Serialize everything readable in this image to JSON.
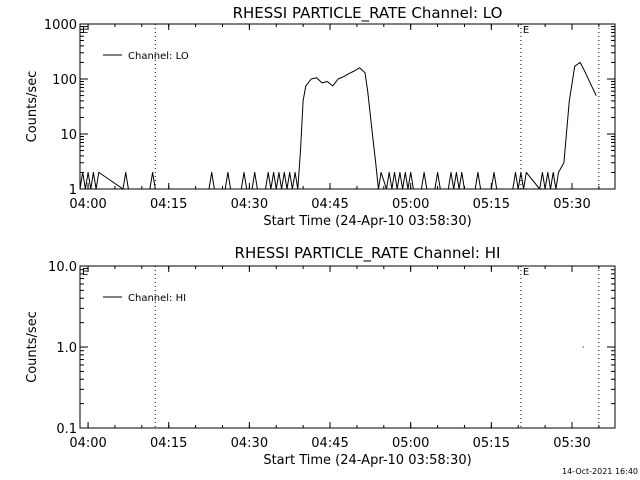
{
  "footer": "14-Oct-2021 16:40",
  "chart_data": [
    {
      "type": "line",
      "title": "RHESSI PARTICLE_RATE Channel: LO",
      "xlabel": "Start Time (24-Apr-10 03:58:30)",
      "ylabel": "Counts/sec",
      "yscale": "log",
      "ylim": [
        1,
        1000
      ],
      "xlim": [
        "03:58:30",
        "05:38:00"
      ],
      "xticks": [
        "04:00",
        "04:15",
        "04:30",
        "04:45",
        "05:00",
        "05:15",
        "05:30"
      ],
      "yticks": [
        "1",
        "10",
        "100",
        "1000"
      ],
      "legend": "Channel: LO",
      "legend_position": "top-left",
      "markers": [
        {
          "time": "04:12:30",
          "label": ""
        },
        {
          "time": "05:20:30",
          "label": "E"
        },
        {
          "time": "05:35:00",
          "label": ""
        }
      ],
      "corner_label": "E",
      "series": [
        {
          "name": "Channel: LO",
          "x": [
            "03:58:30",
            "03:59:00",
            "03:59:30",
            "04:00:00",
            "04:00:30",
            "04:01:00",
            "04:01:30",
            "04:02:00",
            "04:06:30",
            "04:07:00",
            "04:07:30",
            "04:11:30",
            "04:12:00",
            "04:12:30",
            "04:22:30",
            "04:23:00",
            "04:23:30",
            "04:25:30",
            "04:26:00",
            "04:26:30",
            "04:28:30",
            "04:29:00",
            "04:29:30",
            "04:30:30",
            "04:31:00",
            "04:31:30",
            "04:33:00",
            "04:33:30",
            "04:34:00",
            "04:34:30",
            "04:35:00",
            "04:35:30",
            "04:36:00",
            "04:36:30",
            "04:37:00",
            "04:37:30",
            "04:38:00",
            "04:38:30",
            "04:39:00",
            "04:39:30",
            "04:40:00",
            "04:40:30",
            "04:41:30",
            "04:42:30",
            "04:43:30",
            "04:44:30",
            "04:45:30",
            "04:46:30",
            "04:47:30",
            "04:48:30",
            "04:49:30",
            "04:50:30",
            "04:51:30",
            "04:52:00",
            "04:53:00",
            "04:53:30",
            "04:54:00",
            "04:54:30",
            "04:55:30",
            "04:56:00",
            "04:56:30",
            "04:57:00",
            "04:57:30",
            "04:58:00",
            "04:58:30",
            "04:59:00",
            "04:59:30",
            "05:00:00",
            "05:00:30",
            "05:02:00",
            "05:02:30",
            "05:03:00",
            "05:04:30",
            "05:05:00",
            "05:05:30",
            "05:07:00",
            "05:07:30",
            "05:08:00",
            "05:08:30",
            "05:09:00",
            "05:09:30",
            "05:10:00",
            "05:12:00",
            "05:12:30",
            "05:13:00",
            "05:15:00",
            "05:15:30",
            "05:16:00",
            "05:19:00",
            "05:19:30",
            "05:20:00",
            "05:20:30",
            "05:21:00",
            "05:21:30",
            "05:24:00",
            "05:24:30",
            "05:25:00",
            "05:25:30",
            "05:26:00",
            "05:26:30",
            "05:27:00",
            "05:27:30",
            "05:28:30",
            "05:29:30",
            "05:30:30",
            "05:31:30",
            "05:32:30",
            "05:33:30",
            "05:34:30"
          ],
          "y": [
            1,
            2,
            1,
            2,
            1,
            2,
            1,
            2,
            1,
            2,
            1,
            1,
            2,
            1,
            1,
            2,
            1,
            1,
            2,
            1,
            1,
            2,
            1,
            1,
            2,
            1,
            1,
            2,
            1,
            2,
            1,
            2,
            1,
            2,
            1,
            2,
            1,
            2,
            1,
            5,
            40,
            75,
            100,
            105,
            85,
            90,
            75,
            100,
            110,
            125,
            140,
            160,
            130,
            60,
            8,
            3,
            1,
            2,
            1,
            2,
            1,
            2,
            1,
            2,
            1,
            2,
            1,
            2,
            1,
            1,
            2,
            1,
            1,
            2,
            1,
            1,
            2,
            1,
            2,
            1,
            2,
            1,
            1,
            2,
            1,
            1,
            2,
            1,
            1,
            2,
            1,
            2,
            1,
            2,
            1,
            2,
            1,
            2,
            1,
            2,
            1,
            2,
            3,
            40,
            170,
            200,
            130,
            80,
            50
          ]
        }
      ]
    },
    {
      "type": "line",
      "title": "RHESSI PARTICLE_RATE Channel: HI",
      "xlabel": "Start Time (24-Apr-10 03:58:30)",
      "ylabel": "Counts/sec",
      "yscale": "log",
      "ylim": [
        0.1,
        10
      ],
      "xlim": [
        "03:58:30",
        "05:38:00"
      ],
      "xticks": [
        "04:00",
        "04:15",
        "04:30",
        "04:45",
        "05:00",
        "05:15",
        "05:30"
      ],
      "yticks": [
        "0.1",
        "1.0",
        "10.0"
      ],
      "legend": "Channel: HI",
      "legend_position": "top-left",
      "markers": [
        {
          "time": "04:12:30",
          "label": ""
        },
        {
          "time": "05:20:30",
          "label": "E"
        },
        {
          "time": "05:35:00",
          "label": ""
        }
      ],
      "corner_label": "E",
      "series": [
        {
          "name": "Channel: HI",
          "x": [
            "05:32:00"
          ],
          "y": [
            1.0
          ]
        }
      ]
    }
  ]
}
